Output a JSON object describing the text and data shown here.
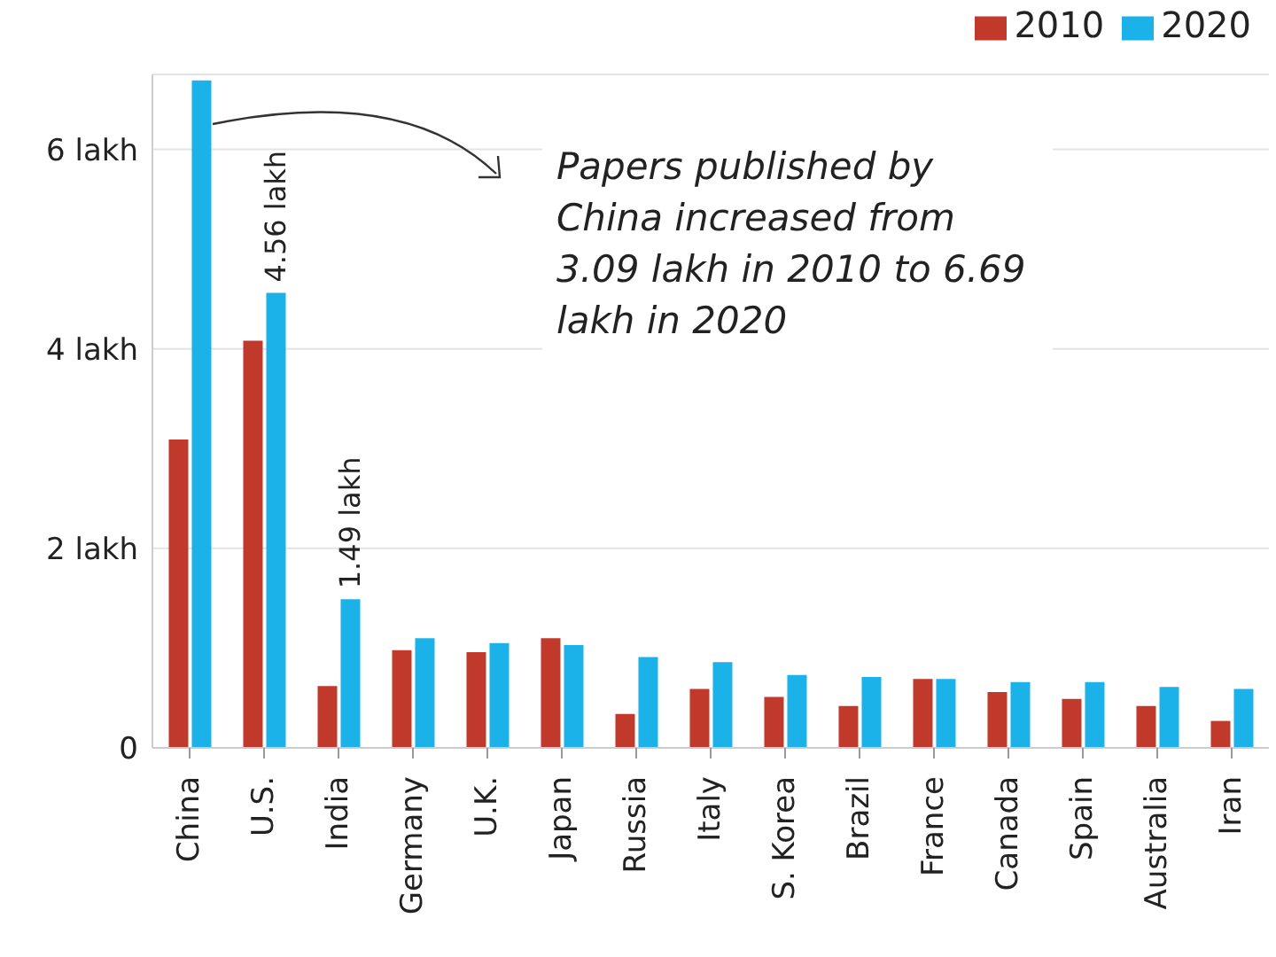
{
  "chart_data": {
    "type": "bar",
    "categories": [
      "China",
      "U.S.",
      "India",
      "Germany",
      "U.K.",
      "Japan",
      "Russia",
      "Italy",
      "S. Korea",
      "Brazil",
      "France",
      "Canada",
      "Spain",
      "Australia",
      "Iran"
    ],
    "series": [
      {
        "name": "2010",
        "color": "#c0392b",
        "values": [
          3.09,
          4.08,
          0.62,
          0.98,
          0.96,
          1.1,
          0.34,
          0.59,
          0.51,
          0.42,
          0.69,
          0.56,
          0.49,
          0.42,
          0.27
        ]
      },
      {
        "name": "2020",
        "color": "#1ab2e8",
        "values": [
          6.69,
          4.56,
          1.49,
          1.1,
          1.05,
          1.03,
          0.91,
          0.86,
          0.73,
          0.71,
          0.69,
          0.66,
          0.66,
          0.61,
          0.59
        ],
        "value_labels": [
          null,
          "4.56 lakh",
          "1.49 lakh",
          null,
          null,
          null,
          null,
          null,
          null,
          null,
          null,
          null,
          null,
          null,
          null
        ]
      }
    ],
    "ylim": [
      0,
      6.75
    ],
    "yticks": [
      0,
      {
        "value": 2,
        "label": "2 lakh"
      },
      {
        "value": 4,
        "label": "4 lakh"
      },
      {
        "value": 6,
        "label": "6 lakh"
      }
    ],
    "grid": "y",
    "legend": "top right",
    "annotations": [
      "Papers published by China increased from 3.09 lakh in 2010 to 6.69 lakh in 2020"
    ]
  }
}
